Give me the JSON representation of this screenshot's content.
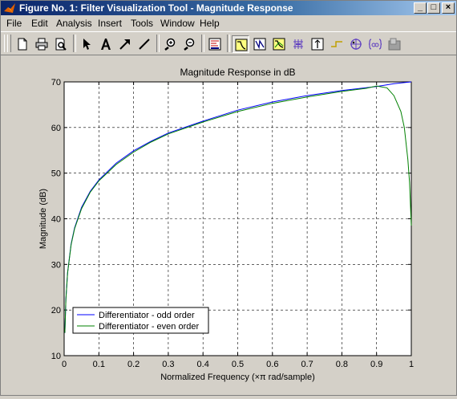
{
  "window": {
    "title": "Figure No. 1: Filter Visualization Tool - Magnitude Response",
    "minimize_label": "_",
    "maximize_label": "□",
    "close_label": "×"
  },
  "menu": [
    "File",
    "Edit",
    "Analysis",
    "Insert",
    "Tools",
    "Window",
    "Help"
  ],
  "toolbar": {
    "icons": [
      "new-file-icon",
      "print-icon",
      "print-preview-icon",
      "select-arrow-icon",
      "insert-text-icon",
      "insert-arrow-icon",
      "insert-line-icon",
      "zoom-in-icon",
      "zoom-out-icon",
      "filter-specs-icon",
      "magnitude-response-icon",
      "phase-response-icon",
      "magnitude-phase-icon",
      "group-delay-icon",
      "impulse-response-icon",
      "step-response-icon",
      "pole-zero-icon",
      "filter-coefficients-icon",
      "filter-info-icon"
    ],
    "pressed": "magnitude-response-icon"
  },
  "chart_data": {
    "type": "line",
    "title": "Magnitude Response in dB",
    "xlabel": "Normalized Frequency  (×π rad/sample)",
    "ylabel": "Magnitude (dB)",
    "xlim": [
      0,
      1
    ],
    "ylim": [
      10,
      70
    ],
    "xticks": [
      "0",
      "0.1",
      "0.2",
      "0.3",
      "0.4",
      "0.5",
      "0.6",
      "0.7",
      "0.8",
      "0.9",
      "1"
    ],
    "yticks": [
      "10",
      "20",
      "30",
      "40",
      "50",
      "60",
      "70"
    ],
    "grid": true,
    "legend_position": "bottom-left",
    "series": [
      {
        "name": "Differentiator - odd order",
        "color": "#0000ff",
        "x": [
          0.002,
          0.005,
          0.01,
          0.02,
          0.03,
          0.05,
          0.075,
          0.1,
          0.15,
          0.2,
          0.25,
          0.3,
          0.4,
          0.5,
          0.6,
          0.7,
          0.8,
          0.9,
          0.95,
          1.0
        ],
        "y": [
          15.0,
          22.4,
          28.2,
          34.5,
          38.0,
          42.5,
          46.0,
          48.5,
          52.2,
          54.9,
          57.0,
          58.8,
          61.4,
          63.8,
          65.6,
          67.0,
          68.1,
          69.0,
          69.6,
          70.0
        ]
      },
      {
        "name": "Differentiator - even order",
        "color": "#008000",
        "x": [
          0.002,
          0.005,
          0.01,
          0.02,
          0.03,
          0.05,
          0.075,
          0.1,
          0.15,
          0.2,
          0.25,
          0.3,
          0.4,
          0.5,
          0.6,
          0.7,
          0.8,
          0.87,
          0.9,
          0.93,
          0.95,
          0.97,
          0.98,
          0.99,
          0.995,
          1.0
        ],
        "y": [
          15.0,
          22.4,
          28.1,
          34.3,
          37.8,
          42.2,
          45.8,
          48.3,
          51.9,
          54.6,
          56.8,
          58.6,
          61.2,
          63.5,
          65.3,
          66.7,
          67.9,
          68.6,
          69.1,
          68.7,
          67.0,
          63.5,
          60.0,
          53.0,
          48.0,
          38.5
        ]
      }
    ]
  }
}
